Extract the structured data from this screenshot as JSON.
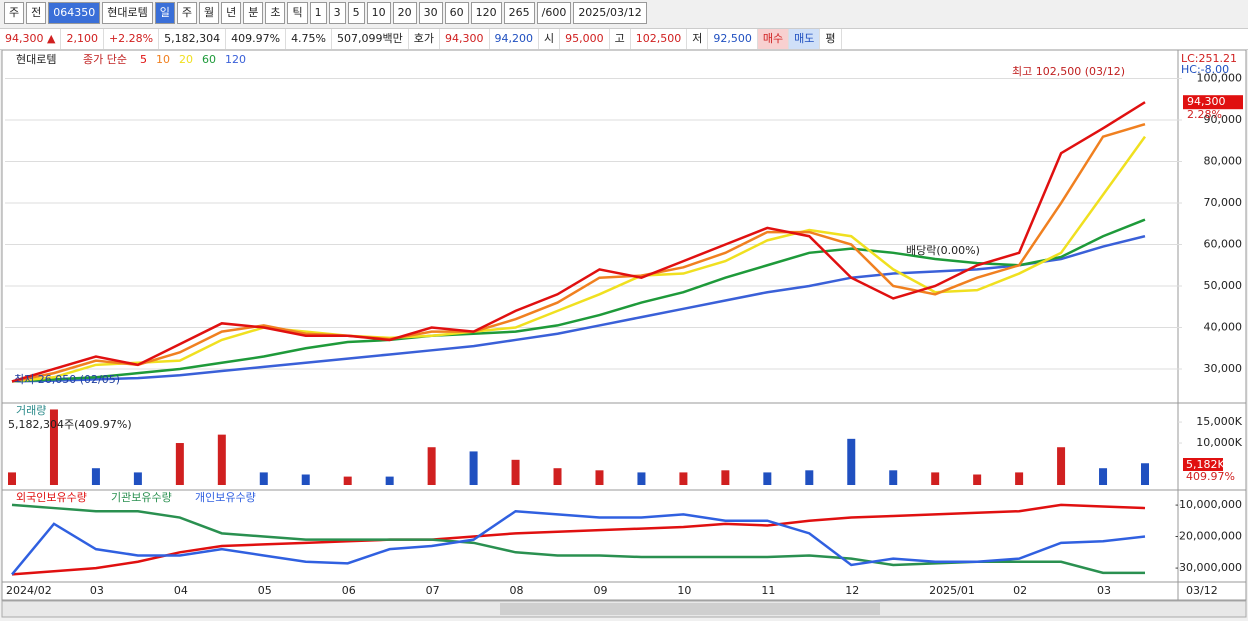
{
  "toolbar": [
    "주",
    "전",
    "064350",
    "현대로템",
    "일",
    "주",
    "월",
    "년",
    "분",
    "초",
    "틱",
    "1",
    "3",
    "5",
    "10",
    "20",
    "30",
    "60",
    "120",
    "265",
    "/600",
    "2025/03/12"
  ],
  "infobar": [
    "94,300 ▲",
    "2,100",
    "+2.28%",
    "5,182,304",
    "409.97%",
    "4.75%",
    "507,099백만",
    "호가",
    "94,300",
    "94,200",
    "시",
    "95,000",
    "고",
    "102,500",
    "저",
    "92,500",
    "매수",
    "매도",
    "평"
  ],
  "chart_data": {
    "type": "line",
    "legend": [
      "현대로템",
      "종가 단순"
    ],
    "x_labels": [
      "2024/02",
      "03",
      "04",
      "05",
      "06",
      "07",
      "08",
      "09",
      "10",
      "11",
      "12",
      "2025/01",
      "02",
      "03"
    ],
    "last_date": "03/12",
    "price": {
      "ylim": [
        21800,
        106400
      ],
      "yticks": [
        {
          "value": 30000,
          "label": "30,000"
        },
        {
          "value": 40000,
          "label": "40,000"
        },
        {
          "value": 50000,
          "label": "50,000"
        },
        {
          "value": 60000,
          "label": "60,000"
        },
        {
          "value": 70000,
          "label": "70,000"
        },
        {
          "value": 80000,
          "label": "80,000"
        },
        {
          "value": 90000,
          "label": "90,000"
        },
        {
          "value": 100000,
          "label": "100,000"
        }
      ],
      "grid": true,
      "series": [
        {
          "name": "120",
          "color": "#3a60d8",
          "values": [
            27000,
            27200,
            27500,
            27800,
            28500,
            29500,
            30500,
            31500,
            32500,
            33500,
            34500,
            35500,
            37000,
            38500,
            40500,
            42500,
            44500,
            46500,
            48500,
            50000,
            52000,
            53000,
            53500,
            54000,
            55000,
            56500,
            59500,
            62000
          ]
        },
        {
          "name": "60",
          "color": "#1e9a3a",
          "values": [
            27000,
            27500,
            28000,
            29000,
            30000,
            31500,
            33000,
            35000,
            36500,
            37000,
            38000,
            38500,
            39000,
            40500,
            43000,
            46000,
            48500,
            52000,
            55000,
            58000,
            59000,
            58000,
            56500,
            55500,
            55000,
            57000,
            62000,
            66000
          ]
        },
        {
          "name": "20",
          "color": "#f0e020",
          "values": [
            27000,
            28000,
            31000,
            31500,
            32000,
            37000,
            40000,
            39000,
            38000,
            37500,
            38000,
            39000,
            40000,
            44000,
            48000,
            52500,
            53000,
            56000,
            61000,
            63500,
            62000,
            54000,
            48500,
            49000,
            53000,
            58000,
            72000,
            86000
          ]
        },
        {
          "name": "10",
          "color": "#f08020",
          "values": [
            27000,
            29000,
            32000,
            31000,
            34000,
            39000,
            40500,
            38500,
            38000,
            37200,
            39000,
            39000,
            42000,
            46000,
            52000,
            52500,
            54500,
            58000,
            63000,
            63000,
            60000,
            50000,
            48000,
            52000,
            55000,
            70000,
            86000,
            89000
          ]
        },
        {
          "name": "5",
          "color": "#e01010",
          "values": [
            27000,
            30000,
            33000,
            31000,
            36000,
            41000,
            40000,
            38000,
            38000,
            37000,
            40000,
            39000,
            44000,
            48000,
            54000,
            52000,
            56000,
            60000,
            64000,
            62000,
            52000,
            47000,
            50000,
            55000,
            58000,
            82000,
            88000,
            94300
          ]
        }
      ],
      "current": "94,300",
      "change": "2.28%",
      "lc": "LC:251.21",
      "hc": "HC:-8.00",
      "annotations": [
        "최고 102,500 (03/12)",
        "최저 26,050 (02/05)",
        "배당락(0.00%)"
      ]
    },
    "volume": {
      "title": "거래량",
      "info": "5,182,304주(409.97%)",
      "current": "5,182K",
      "ratio": "409.97%",
      "ylim": [
        0,
        19300
      ],
      "yticks": [
        {
          "value": 10000,
          "label": "10,000K"
        },
        {
          "value": 15000,
          "label": "15,000K"
        }
      ],
      "values": [
        3000,
        18000,
        4000,
        3000,
        10000,
        12000,
        3000,
        2500,
        2000,
        2000,
        9000,
        8000,
        6000,
        4000,
        3500,
        3000,
        3000,
        3500,
        3000,
        3500,
        11000,
        3500,
        3000,
        2500,
        3000,
        9000,
        4000,
        5182
      ],
      "colors": [
        "#d02020",
        "#d02020",
        "#2050c0",
        "#2050c0",
        "#d02020",
        "#d02020",
        "#2050c0",
        "#2050c0",
        "#d02020",
        "#2050c0",
        "#d02020",
        "#2050c0",
        "#d02020",
        "#d02020",
        "#d02020",
        "#2050c0",
        "#d02020",
        "#d02020",
        "#2050c0",
        "#2050c0",
        "#2050c0",
        "#2050c0",
        "#d02020",
        "#d02020",
        "#d02020",
        "#d02020",
        "#2050c0",
        "#2050c0"
      ]
    },
    "holdings": {
      "ylim": [
        -34400000,
        -5600000
      ],
      "yticks": [
        {
          "value": -10000000,
          "label": "-10,000,000"
        },
        {
          "value": -20000000,
          "label": "-20,000,000"
        },
        {
          "value": -30000000,
          "label": "-30,000,000"
        }
      ],
      "series": [
        {
          "name": "외국인보유수량",
          "color": "#e01010",
          "values": [
            -32000000,
            -31000000,
            -30000000,
            -28000000,
            -25000000,
            -23000000,
            -22500000,
            -22000000,
            -21500000,
            -21000000,
            -21000000,
            -20000000,
            -19000000,
            -18500000,
            -18000000,
            -17500000,
            -17000000,
            -16000000,
            -16500000,
            -15000000,
            -14000000,
            -13500000,
            -13000000,
            -12500000,
            -12000000,
            -10000000,
            -10500000,
            -11000000
          ]
        },
        {
          "name": "기관보유수량",
          "color": "#2a9050",
          "values": [
            -10000000,
            -11000000,
            -12000000,
            -12000000,
            -14000000,
            -19000000,
            -20000000,
            -21000000,
            -21000000,
            -21000000,
            -21000000,
            -22000000,
            -25000000,
            -26000000,
            -26000000,
            -26500000,
            -26500000,
            -26500000,
            -26500000,
            -26000000,
            -27000000,
            -29000000,
            -28500000,
            -28000000,
            -28000000,
            -28000000,
            -31500000,
            -31500000
          ]
        },
        {
          "name": "개인보유수량",
          "color": "#3060e0",
          "values": [
            -32000000,
            -16000000,
            -24000000,
            -26000000,
            -26000000,
            -24000000,
            -26000000,
            -28000000,
            -28500000,
            -24000000,
            -23000000,
            -21000000,
            -12000000,
            -13000000,
            -14000000,
            -14000000,
            -13000000,
            -15000000,
            -15000000,
            -19000000,
            -29000000,
            -27000000,
            -28000000,
            -28000000,
            -27000000,
            -22000000,
            -21500000,
            -20000000
          ]
        }
      ]
    }
  }
}
